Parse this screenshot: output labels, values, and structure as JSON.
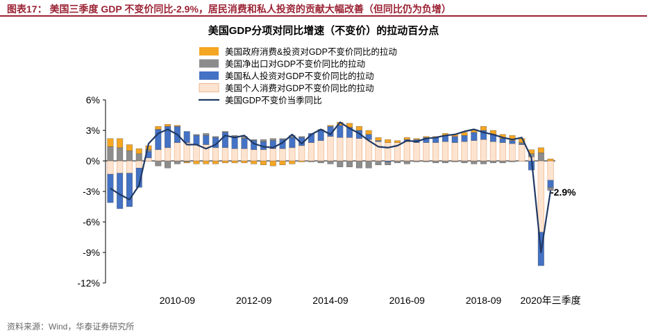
{
  "header": {
    "title": "图表17：   美国三季度 GDP 不变价同比-2.9%，居民消费和私人投资的贡献大幅改善（但同比仍为负增）"
  },
  "source": "资料来源：Wind，华泰证券研究所",
  "colors": {
    "gov": "#f5a623",
    "net_export": "#8c8c8c",
    "private_invest": "#4472c4",
    "personal_cons": "#fde4d0",
    "personal_cons_stroke": "#e8a77a",
    "gdp_line": "#1f3864",
    "accent": "#9b2335"
  },
  "chart_data": {
    "type": "bar",
    "title": "美国GDP分项对同比增速（不变价）的拉动百分点",
    "xlabel": "",
    "ylabel": "",
    "ylim": [
      -12,
      6
    ],
    "yticks": [
      "6%",
      "3%",
      "0%",
      "-3%",
      "-6%",
      "-9%",
      "-12%"
    ],
    "ytick_values": [
      6,
      3,
      0,
      -3,
      -6,
      -9,
      -12
    ],
    "xtick_labels": [
      "2010-09",
      "2012-09",
      "2014-09",
      "2016-09",
      "2018-09",
      "2020年三季度"
    ],
    "xtick_index": [
      7,
      15,
      23,
      31,
      39,
      46
    ],
    "legend_position": "top-center",
    "annotation": "-2.9%",
    "categories": [
      "2009Q1",
      "2009Q2",
      "2009Q3",
      "2009Q4",
      "2010Q1",
      "2010Q2",
      "2010Q3",
      "2010Q4",
      "2011Q1",
      "2011Q2",
      "2011Q3",
      "2011Q4",
      "2012Q1",
      "2012Q2",
      "2012Q3",
      "2012Q4",
      "2013Q1",
      "2013Q2",
      "2013Q3",
      "2013Q4",
      "2014Q1",
      "2014Q2",
      "2014Q3",
      "2014Q4",
      "2015Q1",
      "2015Q2",
      "2015Q3",
      "2015Q4",
      "2016Q1",
      "2016Q2",
      "2016Q3",
      "2016Q4",
      "2017Q1",
      "2017Q2",
      "2017Q3",
      "2017Q4",
      "2018Q1",
      "2018Q2",
      "2018Q3",
      "2018Q4",
      "2019Q1",
      "2019Q2",
      "2019Q3",
      "2019Q4",
      "2020Q1",
      "2020Q2",
      "2020Q3"
    ],
    "series": [
      {
        "name": "美国政府消费&投资对GDP不变价同比的拉动",
        "key": "gov",
        "values": [
          0.8,
          0.9,
          0.6,
          0.5,
          0.4,
          0.3,
          0.2,
          0.1,
          -0.1,
          -0.3,
          -0.3,
          -0.3,
          -0.2,
          -0.2,
          -0.2,
          -0.3,
          -0.4,
          -0.5,
          -0.4,
          -0.3,
          -0.1,
          0,
          0.1,
          0.1,
          0.3,
          0.4,
          0.4,
          0.4,
          0.3,
          0.3,
          0.2,
          0.2,
          0.1,
          0.1,
          0.1,
          0.2,
          0.2,
          0.3,
          0.3,
          0.4,
          0.4,
          0.4,
          0.5,
          0.4,
          0.4,
          0.5,
          0.2
        ]
      },
      {
        "name": "美国净出口对GDP不变价同比的拉动",
        "key": "net_export",
        "values": [
          1.4,
          1.3,
          1.0,
          0.7,
          0.2,
          -0.5,
          -0.7,
          -0.3,
          -0.1,
          0.1,
          0.2,
          0.1,
          0.1,
          0.1,
          0.2,
          0.1,
          0.2,
          0.2,
          0.1,
          0.2,
          0.1,
          -0.1,
          -0.2,
          -0.3,
          -0.6,
          -0.6,
          -0.7,
          -0.7,
          -0.4,
          -0.3,
          -0.2,
          -0.3,
          -0.1,
          -0.1,
          -0.2,
          -0.2,
          -0.1,
          -0.2,
          -0.3,
          -0.3,
          -0.2,
          -0.2,
          -0.1,
          0.1,
          0.3,
          0.8,
          -0.3
        ]
      },
      {
        "name": "美国私人投资对GDP不变价同比的拉动",
        "key": "private_invest",
        "values": [
          -2.8,
          -3.5,
          -3.3,
          -1.9,
          0.6,
          2.0,
          2.1,
          1.6,
          1.1,
          0.9,
          0.9,
          1.0,
          1.5,
          1.2,
          1.0,
          0.9,
          0.8,
          0.8,
          0.9,
          1.0,
          0.8,
          0.9,
          1.0,
          1.0,
          1.2,
          1.0,
          0.8,
          0.5,
          0.1,
          -0.1,
          0.0,
          0.2,
          0.3,
          0.5,
          0.5,
          0.6,
          0.6,
          0.6,
          0.8,
          0.9,
          0.7,
          0.4,
          0.3,
          0.1,
          -0.9,
          -3.3,
          -0.7
        ]
      },
      {
        "name": "美国个人消费对GDP不变价同比的拉动",
        "key": "personal_cons",
        "values": [
          -1.3,
          -1.2,
          -1.2,
          -0.7,
          0.3,
          1.1,
          1.3,
          1.8,
          1.8,
          1.6,
          1.6,
          1.3,
          1.3,
          1.2,
          1.2,
          1.1,
          1.1,
          1.2,
          1.2,
          1.3,
          1.5,
          1.8,
          2.0,
          2.4,
          2.3,
          2.3,
          2.2,
          2.1,
          1.9,
          1.8,
          1.8,
          1.9,
          1.8,
          1.8,
          1.8,
          1.9,
          1.8,
          1.9,
          2.0,
          2.1,
          1.9,
          1.8,
          1.7,
          1.6,
          0.4,
          -7.0,
          -1.9
        ]
      },
      {
        "name": "美国GDP不变价当季同比",
        "key": "gdp_line",
        "values": [
          -2.7,
          -3.3,
          -3.8,
          -2.4,
          1.7,
          2.7,
          3.1,
          2.6,
          1.6,
          1.6,
          1.2,
          1.6,
          2.5,
          2.3,
          2.5,
          1.7,
          1.4,
          1.3,
          1.8,
          2.6,
          1.7,
          2.6,
          3.1,
          2.6,
          3.8,
          3.2,
          2.7,
          2.0,
          1.4,
          1.3,
          1.5,
          2.0,
          1.9,
          2.2,
          2.3,
          2.5,
          2.6,
          2.9,
          3.1,
          2.8,
          2.6,
          2.3,
          2.1,
          2.3,
          0.3,
          -9.0,
          -2.9
        ]
      }
    ]
  }
}
